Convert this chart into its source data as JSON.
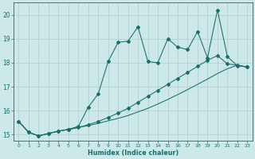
{
  "xlabel": "Humidex (Indice chaleur)",
  "bg_color": "#cce8e8",
  "grid_color": "#aacfcf",
  "line_color": "#1a6e6a",
  "xlim": [
    -0.5,
    23.5
  ],
  "ylim": [
    14.75,
    20.5
  ],
  "yticks": [
    15,
    16,
    17,
    18,
    19,
    20
  ],
  "xticks": [
    0,
    1,
    2,
    3,
    4,
    5,
    6,
    7,
    8,
    9,
    10,
    11,
    12,
    13,
    14,
    15,
    16,
    17,
    18,
    19,
    20,
    21,
    22,
    23
  ],
  "line_straight_x": [
    0,
    1,
    2,
    3,
    4,
    5,
    6,
    7,
    8,
    9,
    10,
    11,
    12,
    13,
    14,
    15,
    16,
    17,
    18,
    19,
    20,
    21,
    22,
    23
  ],
  "line_straight_y": [
    15.55,
    15.1,
    14.95,
    15.05,
    15.15,
    15.22,
    15.3,
    15.38,
    15.47,
    15.58,
    15.68,
    15.8,
    15.95,
    16.1,
    16.28,
    16.47,
    16.67,
    16.88,
    17.1,
    17.32,
    17.55,
    17.75,
    17.9,
    17.82
  ],
  "line_mid_x": [
    0,
    1,
    2,
    3,
    4,
    5,
    6,
    7,
    8,
    9,
    10,
    11,
    12,
    13,
    14,
    15,
    16,
    17,
    18,
    19,
    20,
    21,
    22,
    23
  ],
  "line_mid_y": [
    15.55,
    15.1,
    14.95,
    15.05,
    15.15,
    15.22,
    15.3,
    15.42,
    15.55,
    15.72,
    15.9,
    16.1,
    16.35,
    16.6,
    16.85,
    17.1,
    17.35,
    17.6,
    17.85,
    18.1,
    18.3,
    17.95,
    17.9,
    17.82
  ],
  "line_jagged_x": [
    0,
    1,
    2,
    3,
    4,
    5,
    6,
    7,
    8,
    9,
    10,
    11,
    12,
    13,
    14,
    15,
    16,
    17,
    18,
    19,
    20,
    21,
    22,
    23
  ],
  "line_jagged_y": [
    15.55,
    15.1,
    14.95,
    15.05,
    15.15,
    15.22,
    15.35,
    16.15,
    16.7,
    18.05,
    18.85,
    18.9,
    19.5,
    18.05,
    18.0,
    19.0,
    18.65,
    18.55,
    19.3,
    18.2,
    20.2,
    18.25,
    17.88,
    17.82
  ]
}
